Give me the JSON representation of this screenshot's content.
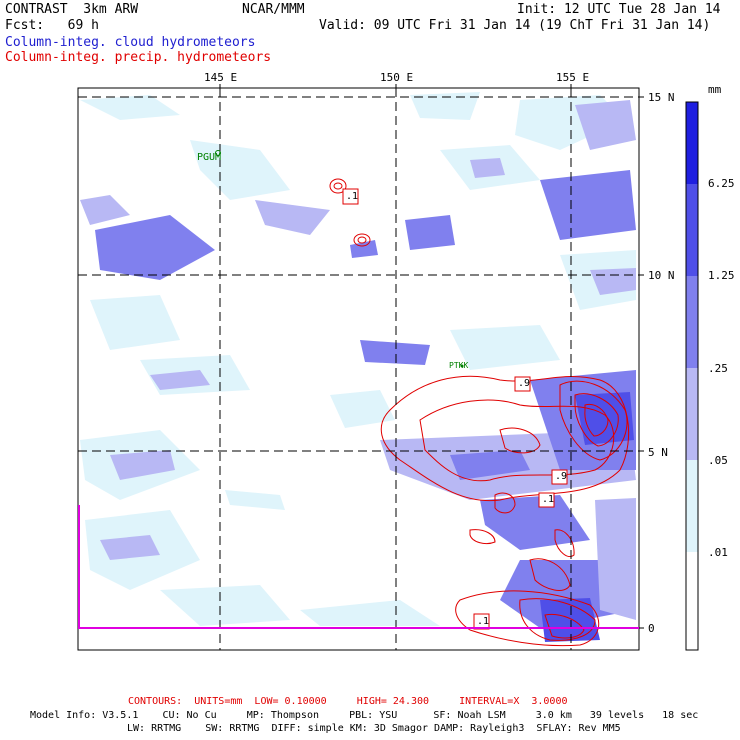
{
  "header": {
    "model": "CONTRAST  3km ARW",
    "org": "NCAR/MMM",
    "init": "Init: 12 UTC Tue 28 Jan 14",
    "fcst": "Fcst:   69 h",
    "valid": "Valid: 09 UTC Fri 31 Jan 14 (19 ChT Fri 31 Jan 14)",
    "field1": "Column-integ. cloud hydrometeors",
    "field2": "Column-integ. precip. hydrometeors"
  },
  "map": {
    "lon_labels": [
      "145 E",
      "150 E",
      "155 E"
    ],
    "lat_labels": [
      "15 N",
      "10 N",
      "5 N",
      "0"
    ],
    "stations": [
      "PGUM",
      "PTKK"
    ],
    "contour_labels": [
      ".1",
      ".9",
      ".9",
      ".1",
      ".1"
    ]
  },
  "colorbar": {
    "units": "mm",
    "labels": [
      "6.25",
      "1.25",
      ".25",
      ".05",
      ".01"
    ],
    "colors": [
      "#1f1fe0",
      "#4f4fe8",
      "#8080ee",
      "#b8b8f4",
      "#dff4fb",
      "#ffffff"
    ]
  },
  "footer": {
    "contours": "CONTOURS:  UNITS=mm  LOW= 0.10000     HIGH= 24.300     INTERVAL=X  3.0000",
    "info1": "Model Info: V3.5.1    CU: No Cu     MP: Thompson     PBL: YSU      SF: Noah LSM     3.0 km   39 levels   18 sec",
    "info2": "LW: RRTMG    SW: RRTMG  DIFF: simple KM: 3D Smagor DAMP: Rayleigh3  SFLAY: Rev MM5"
  },
  "colors": {
    "cloud_label": "#2020d0",
    "precip_label": "#e00000",
    "contour": "#e00000",
    "station": "#008000",
    "boundary": "#e000e0"
  }
}
